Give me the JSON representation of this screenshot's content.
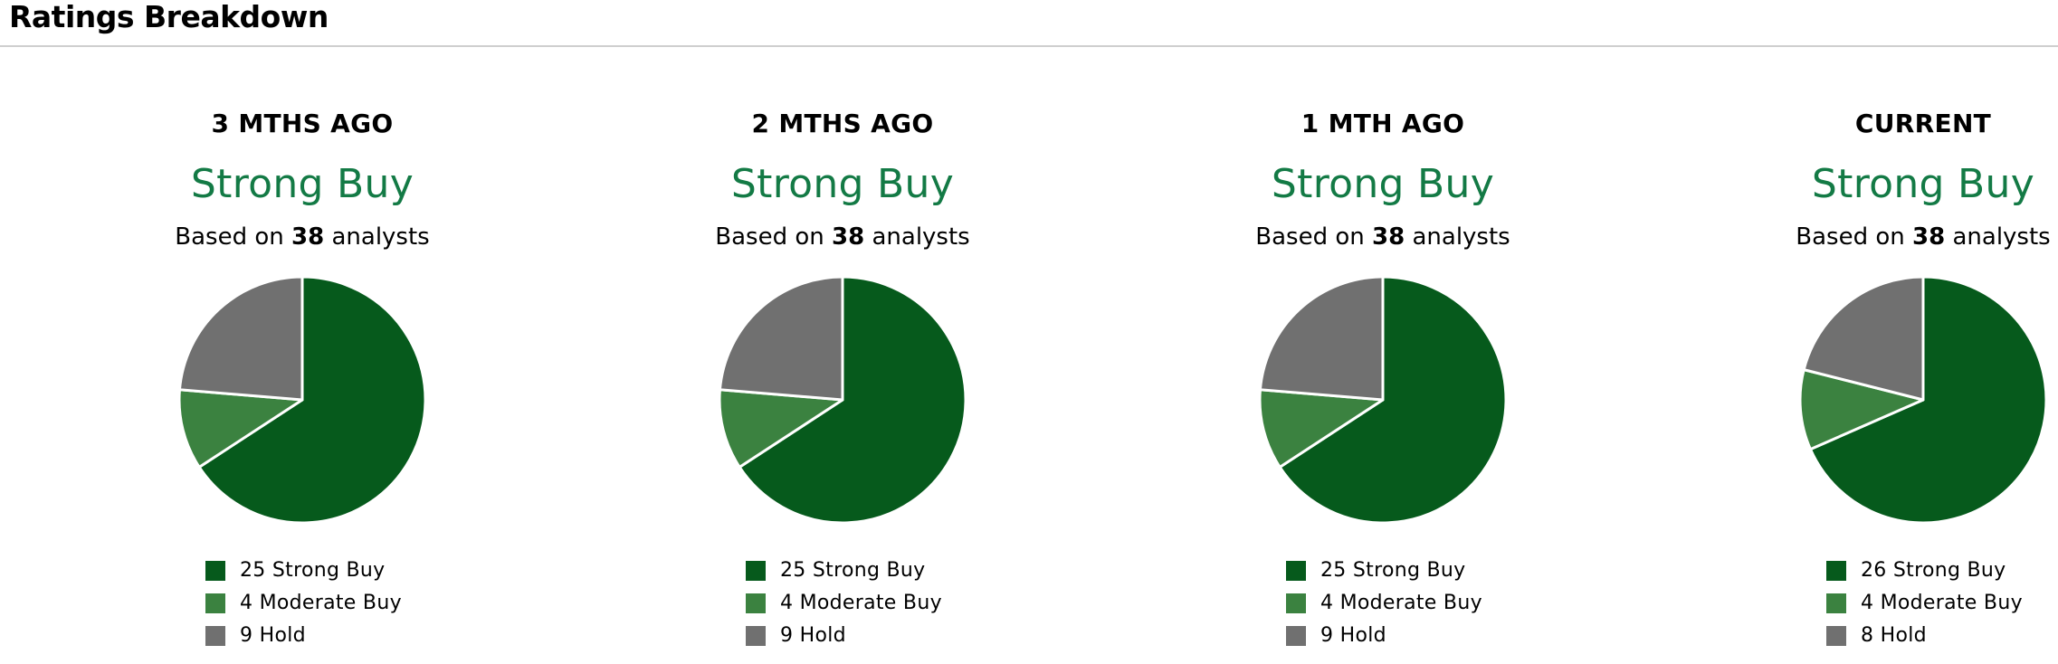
{
  "header": {
    "title": "Ratings Breakdown"
  },
  "colors": {
    "strong_buy": "#065a1c",
    "moderate_buy": "#3b8240",
    "hold": "#707070",
    "consensus_text": "#137a45"
  },
  "panels": [
    {
      "title": "3 MTHS AGO",
      "consensus": "Strong Buy",
      "based_prefix": "Based on",
      "analysts": "38",
      "based_suffix": "analysts",
      "legend": [
        {
          "count": "25",
          "label": "Strong Buy"
        },
        {
          "count": "4",
          "label": "Moderate Buy"
        },
        {
          "count": "9",
          "label": "Hold"
        }
      ]
    },
    {
      "title": "2 MTHS AGO",
      "consensus": "Strong Buy",
      "based_prefix": "Based on",
      "analysts": "38",
      "based_suffix": "analysts",
      "legend": [
        {
          "count": "25",
          "label": "Strong Buy"
        },
        {
          "count": "4",
          "label": "Moderate Buy"
        },
        {
          "count": "9",
          "label": "Hold"
        }
      ]
    },
    {
      "title": "1 MTH AGO",
      "consensus": "Strong Buy",
      "based_prefix": "Based on",
      "analysts": "38",
      "based_suffix": "analysts",
      "legend": [
        {
          "count": "25",
          "label": "Strong Buy"
        },
        {
          "count": "4",
          "label": "Moderate Buy"
        },
        {
          "count": "9",
          "label": "Hold"
        }
      ]
    },
    {
      "title": "CURRENT",
      "consensus": "Strong Buy",
      "based_prefix": "Based on",
      "analysts": "38",
      "based_suffix": "analysts",
      "legend": [
        {
          "count": "26",
          "label": "Strong Buy"
        },
        {
          "count": "4",
          "label": "Moderate Buy"
        },
        {
          "count": "8",
          "label": "Hold"
        }
      ]
    }
  ],
  "chart_data": [
    {
      "type": "pie",
      "title": "3 MTHS AGO",
      "categories": [
        "Strong Buy",
        "Moderate Buy",
        "Hold"
      ],
      "values": [
        25,
        4,
        9
      ],
      "colors": [
        "#065a1c",
        "#3b8240",
        "#707070"
      ]
    },
    {
      "type": "pie",
      "title": "2 MTHS AGO",
      "categories": [
        "Strong Buy",
        "Moderate Buy",
        "Hold"
      ],
      "values": [
        25,
        4,
        9
      ],
      "colors": [
        "#065a1c",
        "#3b8240",
        "#707070"
      ]
    },
    {
      "type": "pie",
      "title": "1 MTH AGO",
      "categories": [
        "Strong Buy",
        "Moderate Buy",
        "Hold"
      ],
      "values": [
        25,
        4,
        9
      ],
      "colors": [
        "#065a1c",
        "#3b8240",
        "#707070"
      ]
    },
    {
      "type": "pie",
      "title": "CURRENT",
      "categories": [
        "Strong Buy",
        "Moderate Buy",
        "Hold"
      ],
      "values": [
        26,
        4,
        8
      ],
      "colors": [
        "#065a1c",
        "#3b8240",
        "#707070"
      ]
    }
  ]
}
